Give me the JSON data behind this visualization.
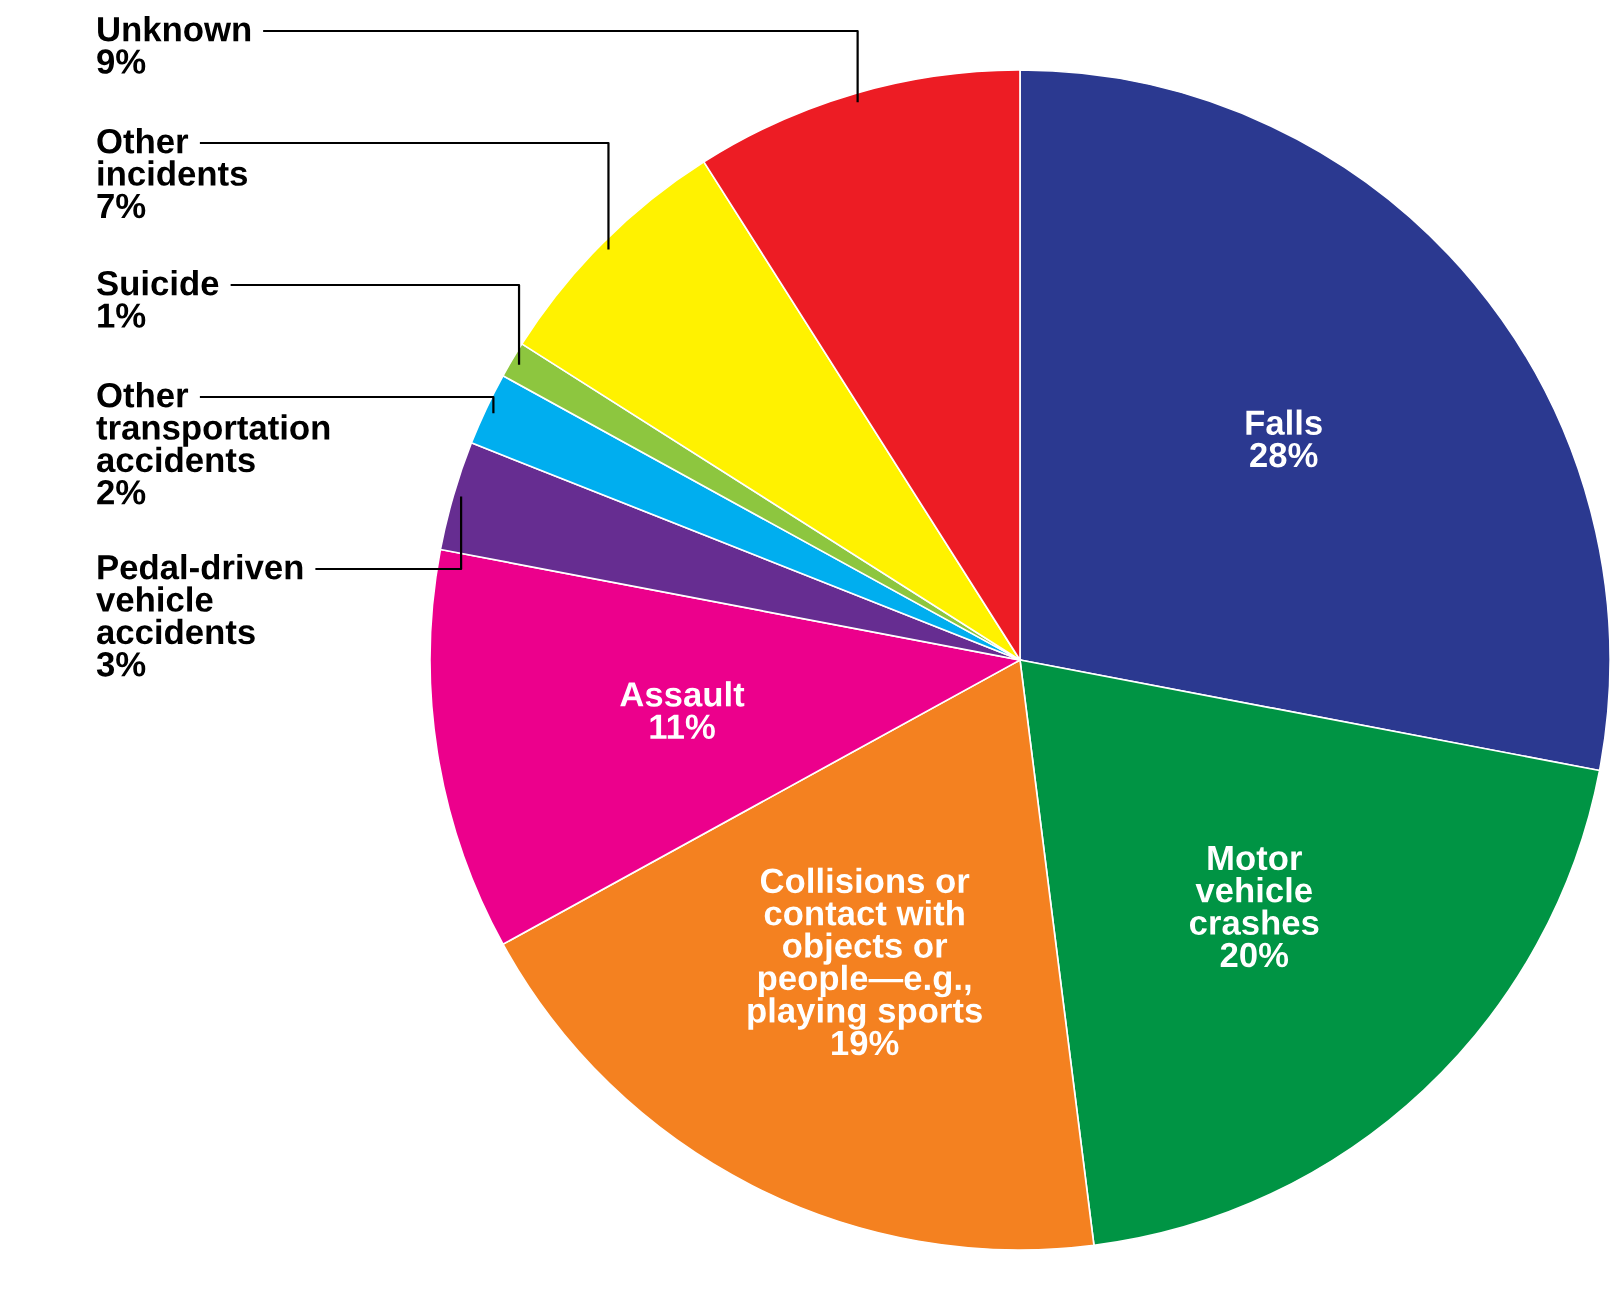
{
  "chart_data": {
    "type": "pie",
    "categories": [
      "Falls",
      "Motor\nvehicle\ncrashes",
      "Collisions or\ncontact with\nobjects or\npeople—e.g.,\nplaying sports",
      "Assault",
      "Pedal-driven\nvehicle\naccidents",
      "Other\ntransportation\naccidents",
      "Suicide",
      "Other\nincidents",
      "Unknown"
    ],
    "values": [
      28,
      20,
      19,
      11,
      3,
      2,
      1,
      7,
      9
    ],
    "colors": [
      "#2b3990",
      "#009444",
      "#f48120",
      "#ec008c",
      "#662d91",
      "#00aeef",
      "#8dc63f",
      "#fff200",
      "#ed1c24"
    ],
    "value_labels": [
      "28%",
      "20%",
      "19%",
      "11%",
      "3%",
      "2%",
      "1%",
      "7%",
      "9%"
    ]
  }
}
